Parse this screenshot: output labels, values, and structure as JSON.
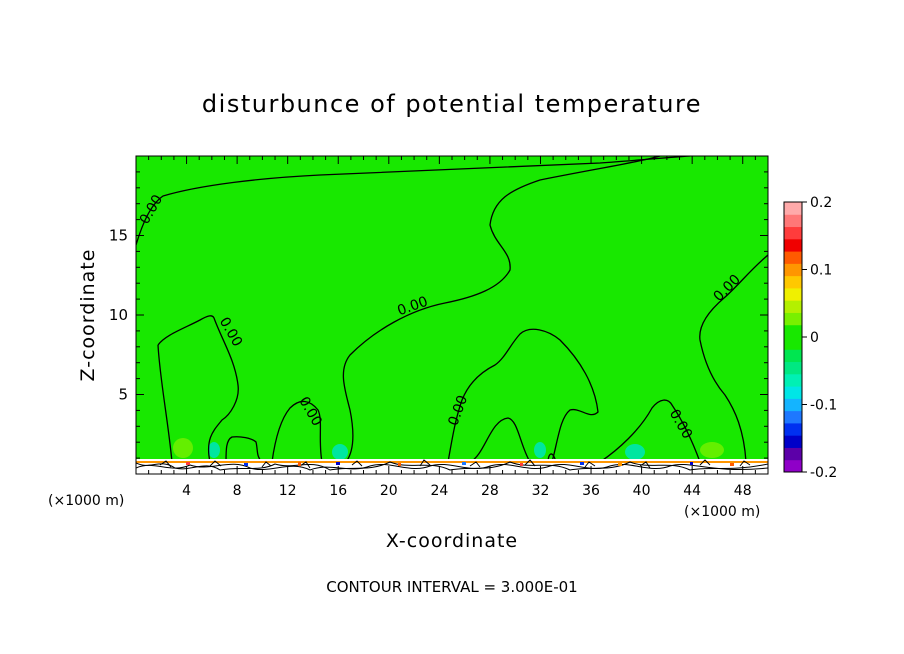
{
  "chart_data": {
    "type": "heatmap",
    "title": "disturbunce of potential temperature",
    "xlabel": "X-coordinate",
    "ylabel": "Z-coordinate",
    "x_unit": "(×1000 m)",
    "x_unit_right": "(×1000 m)",
    "footer": "CONTOUR INTERVAL = 3.000E-01",
    "xlim": [
      0,
      50
    ],
    "ylim": [
      0,
      20
    ],
    "x_ticks": [
      4,
      8,
      12,
      16,
      20,
      24,
      28,
      32,
      36,
      40,
      44,
      48
    ],
    "y_ticks": [
      5,
      10,
      15
    ],
    "x_tick_labels": [
      "4",
      "8",
      "12",
      "16",
      "20",
      "24",
      "28",
      "32",
      "36",
      "40",
      "44",
      "48"
    ],
    "y_tick_labels": [
      "5",
      "10",
      "15"
    ],
    "contour_labels": [
      {
        "text": "0.00",
        "x": 1.5,
        "y": 16.5
      },
      {
        "text": "0.00",
        "x": 7.2,
        "y": 8.8
      },
      {
        "text": "0.00",
        "x": 13.5,
        "y": 3.8
      },
      {
        "text": "0.00",
        "x": 22.0,
        "y": 10.3
      },
      {
        "text": "0.00",
        "x": 25.8,
        "y": 3.9
      },
      {
        "text": "0.00",
        "x": 42.8,
        "y": 3.0
      },
      {
        "text": "0.00",
        "x": 47.0,
        "y": 11.5
      }
    ],
    "colorbar": {
      "min": -0.2,
      "max": 0.2,
      "tick_labels": [
        "0.2",
        "0.1",
        "0",
        "-0.1",
        "-0.2"
      ],
      "tick_values": [
        0.2,
        0.1,
        0,
        -0.1,
        -0.2
      ],
      "colors": [
        "#8f00c8",
        "#5c00a8",
        "#0000c8",
        "#0030f0",
        "#1e78ff",
        "#14b4ff",
        "#00e6e6",
        "#00f0b4",
        "#00e882",
        "#00e650",
        "#18e800",
        "#18e800",
        "#78f000",
        "#b4f000",
        "#f0f000",
        "#ffc800",
        "#ff9600",
        "#ff5a00",
        "#f00000",
        "#ff3c3c",
        "#ff7878",
        "#ffaaaa"
      ]
    },
    "background_color": "#18e800"
  }
}
